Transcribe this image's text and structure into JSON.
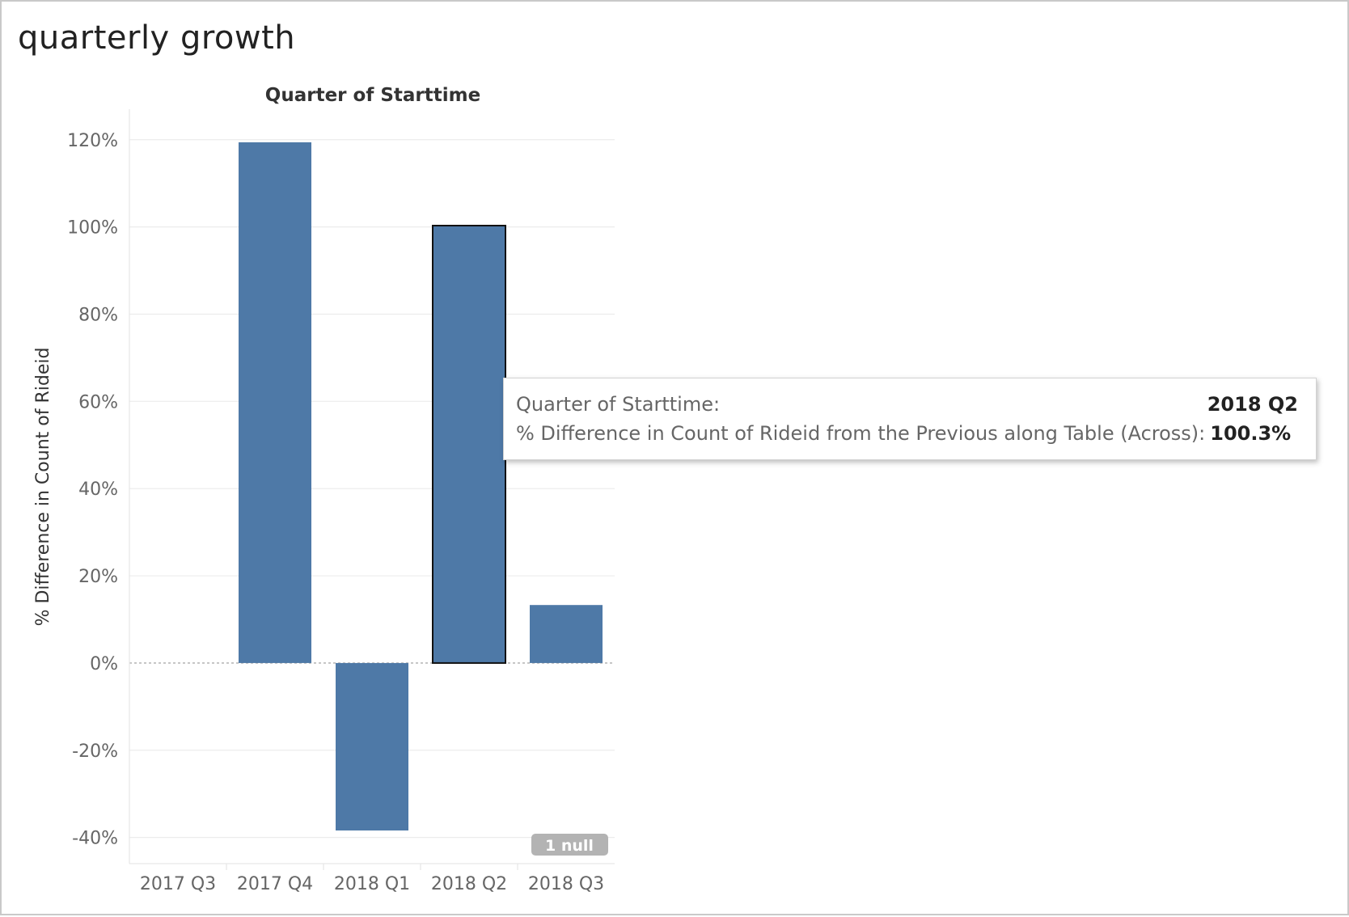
{
  "sheet": {
    "title": "quarterly growth"
  },
  "chart_data": {
    "type": "bar",
    "title": "Quarter of Starttime",
    "xlabel": "",
    "ylabel": "% Difference in Count of Rideid",
    "categories": [
      "2017 Q3",
      "2017 Q4",
      "2018 Q1",
      "2018 Q2",
      "2018 Q3"
    ],
    "values": [
      null,
      119.4,
      -38.4,
      100.3,
      13.3
    ],
    "ylim": [
      -46,
      127
    ],
    "yticks": [
      -40,
      -20,
      0,
      20,
      40,
      60,
      80,
      100,
      120
    ],
    "ytick_labels": [
      "-40%",
      "-20%",
      "0%",
      "20%",
      "40%",
      "60%",
      "80%",
      "100%",
      "120%"
    ],
    "grid": true,
    "bar_color": "#4e79a7",
    "highlighted_category": "2018 Q2",
    "null_indicator": "1 null"
  },
  "tooltip": {
    "row1_label": "Quarter of Starttime:",
    "row1_value": "2018 Q2",
    "row2_label": "% Difference in Count of Rideid from the Previous along Table (Across):",
    "row2_value": "100.3%"
  },
  "colors": {
    "bar": "#4e79a7",
    "grid": "#ececec",
    "axis_text": "#666666",
    "null_badge": "#b3b3b3"
  }
}
